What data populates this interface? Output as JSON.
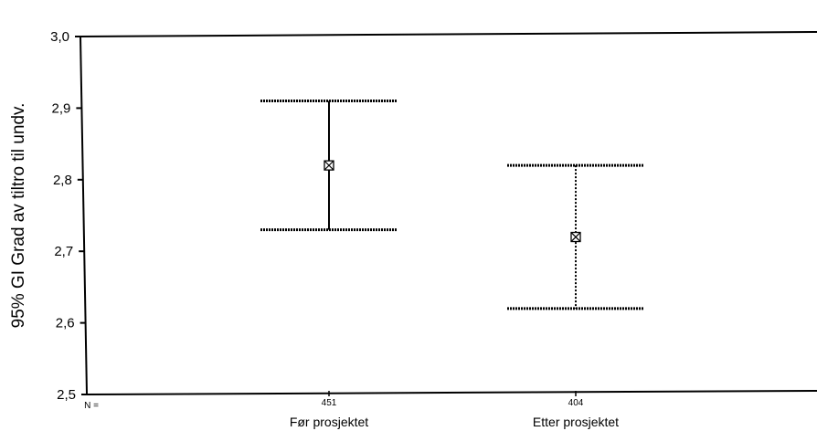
{
  "chart_data": {
    "type": "errorbar",
    "ylabel": "95% GI  Grad av tiltro til undv.",
    "ylim": [
      2.5,
      3.0
    ],
    "yticks": [
      "2,5",
      "2,6",
      "2,7",
      "2,8",
      "2,9",
      "3,0"
    ],
    "n_label": "N =",
    "categories": [
      "Før prosjektet",
      "Etter prosjektet"
    ],
    "n": [
      "451",
      "404"
    ],
    "mean": [
      2.82,
      2.72
    ],
    "lower": [
      2.73,
      2.62
    ],
    "upper": [
      2.91,
      2.82
    ],
    "grid": false,
    "legend": "none"
  }
}
